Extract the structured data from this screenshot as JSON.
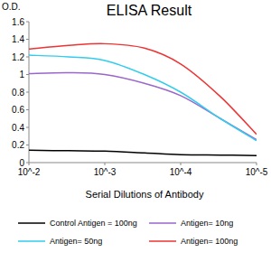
{
  "chart_data": {
    "type": "line",
    "title": "ELISA Result",
    "y_label": "O.D.",
    "x_label": "Serial Dilutions of Antibody",
    "log": "x",
    "x": [
      0.01,
      0.003,
      0.001,
      0.0003,
      0.0001,
      3e-05,
      1e-05
    ],
    "xlim": [
      0.01,
      1e-05
    ],
    "xticks": [
      {
        "value": 0.01,
        "label": "10^-2"
      },
      {
        "value": 0.001,
        "label": "10^-3"
      },
      {
        "value": 0.0001,
        "label": "10^-4"
      },
      {
        "value": 1e-05,
        "label": "10^-5"
      }
    ],
    "ylim": [
      0,
      1.6
    ],
    "yticks": [
      0,
      0.2,
      0.4,
      0.6,
      0.8,
      1,
      1.2,
      1.4,
      1.6
    ],
    "grid": false,
    "legend": "bottom",
    "series": [
      {
        "name": "Control Antigen = 100ng",
        "color": "#000000",
        "values": [
          0.14,
          0.135,
          0.13,
          0.11,
          0.09,
          0.085,
          0.08
        ]
      },
      {
        "name": "Antigen= 10ng",
        "color": "#9966cc",
        "values": [
          1.01,
          1.02,
          1.0,
          0.9,
          0.76,
          0.5,
          0.26
        ]
      },
      {
        "name": "Antigen= 50ng",
        "color": "#33ccee",
        "values": [
          1.22,
          1.2,
          1.16,
          1.0,
          0.8,
          0.5,
          0.25
        ]
      },
      {
        "name": "Antigen= 100ng",
        "color": "#ee3333",
        "values": [
          1.29,
          1.33,
          1.35,
          1.3,
          1.12,
          0.75,
          0.32
        ]
      }
    ]
  }
}
